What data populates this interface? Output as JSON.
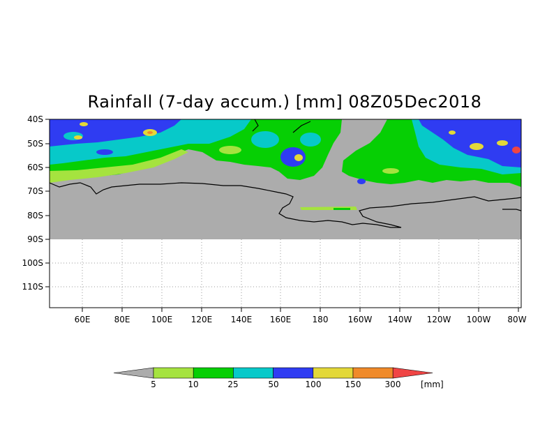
{
  "title": "Rainfall (7-day accum.) [mm] 08Z05Dec2018",
  "map": {
    "lat_labels": [
      "40S",
      "50S",
      "60S",
      "70S",
      "80S",
      "90S",
      "100S",
      "110S"
    ],
    "lon_labels": [
      "60E",
      "80E",
      "100E",
      "120E",
      "140E",
      "160E",
      "180",
      "160W",
      "140W",
      "120W",
      "100W",
      "80W"
    ],
    "no_data_color": "#acacac"
  },
  "legend": {
    "labels": [
      "5",
      "10",
      "25",
      "50",
      "100",
      "150",
      "300"
    ],
    "unit": "[mm]",
    "colors": [
      "#acacac",
      "#a5e33f",
      "#06cf04",
      "#07c9c9",
      "#2f3cf2",
      "#e3d838",
      "#f08a29",
      "#f04545"
    ]
  }
}
